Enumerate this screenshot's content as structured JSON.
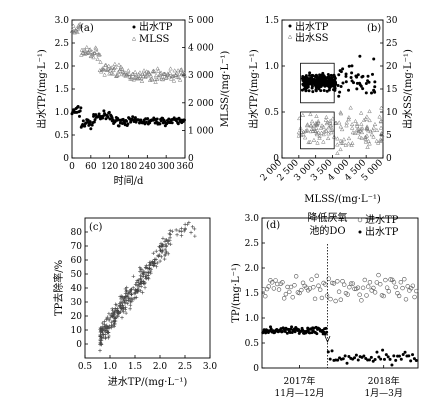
{
  "figure": {
    "panels": [
      {
        "id": "a",
        "label": "(a)"
      },
      {
        "id": "b",
        "label": "(b)"
      },
      {
        "id": "c",
        "label": "(c)"
      },
      {
        "id": "d",
        "label": "(d)"
      }
    ]
  },
  "chart_data": [
    {
      "panel": "(a)",
      "type": "scatter",
      "xlabel": "时间/d",
      "ylabel": "出水TP/(mg·L⁻¹)",
      "ylabel_right": "MLSS/(mg·L⁻¹)",
      "xlim": [
        0,
        365
      ],
      "ylim": [
        0,
        3.0
      ],
      "ylim_right": [
        0,
        5000
      ],
      "xticks": [
        "0",
        "60",
        "120",
        "180",
        "240",
        "300",
        "360"
      ],
      "yticks": [
        "0",
        "0.5",
        "1.0",
        "1.5",
        "2.0",
        "2.5",
        "3.0"
      ],
      "yticks_right": [
        "0",
        "1 000",
        "2 000",
        "3 000",
        "4 000",
        "5 000"
      ],
      "legend": [
        "出水TP",
        "MLSS"
      ],
      "legend_position": "top-right",
      "series": [
        {
          "name": "出水TP",
          "axis": "left",
          "marker": "filled-circle",
          "segments": [
            {
              "x_range": [
                0,
                30
              ],
              "level": 1.0,
              "spread": 0.2
            },
            {
              "x_range": [
                30,
                70
              ],
              "level": 0.75,
              "spread": 0.2
            },
            {
              "x_range": [
                70,
                130
              ],
              "level": 0.9,
              "spread": 0.15
            },
            {
              "x_range": [
                130,
                365
              ],
              "level": 0.8,
              "spread": 0.12
            }
          ]
        },
        {
          "name": "MLSS",
          "axis": "right",
          "marker": "open-triangle",
          "segments": [
            {
              "x_range": [
                0,
                30
              ],
              "level": 4700,
              "spread": 300
            },
            {
              "x_range": [
                30,
                90
              ],
              "level": 3800,
              "spread": 300
            },
            {
              "x_range": [
                90,
                160
              ],
              "level": 3200,
              "spread": 400
            },
            {
              "x_range": [
                160,
                365
              ],
              "level": 3000,
              "spread": 300
            }
          ]
        }
      ]
    },
    {
      "panel": "(b)",
      "type": "scatter",
      "xlabel": "MLSS/(mg·L⁻¹)",
      "ylabel": "出水TP/(mg·L⁻¹)",
      "ylabel_right": "出水SS/(mg·L⁻¹)",
      "xlim": [
        2000,
        5000
      ],
      "ylim": [
        0,
        1.5
      ],
      "ylim_right": [
        0,
        30
      ],
      "xticks": [
        "2 000",
        "2 500",
        "3 000",
        "3 500",
        "4 000",
        "4 500",
        "5 000"
      ],
      "yticks": [
        "0",
        "0.5",
        "1.0",
        "1.5"
      ],
      "yticks_right": [
        "0",
        "5",
        "10",
        "15",
        "20",
        "25",
        "30"
      ],
      "legend": [
        "出水TP",
        "出水SS"
      ],
      "legend_position": "top-left",
      "series": [
        {
          "name": "出水TP",
          "axis": "left",
          "marker": "filled-circle",
          "cluster": {
            "x_range": [
              2500,
              4000
            ],
            "level": 0.85,
            "spread": 0.2
          }
        },
        {
          "name": "出水SS",
          "axis": "right",
          "marker": "open-triangle",
          "cluster": {
            "x_range": [
              2500,
              5000
            ],
            "level": 6,
            "spread": 4
          }
        }
      ],
      "boxes": [
        {
          "series": "出水TP",
          "x_range": [
            2550,
            3550
          ],
          "y_range": [
            0.6,
            1.03
          ]
        },
        {
          "series": "出水SS",
          "x_range": [
            2550,
            3550
          ],
          "y_range_right": [
            2,
            10
          ]
        }
      ]
    },
    {
      "panel": "(c)",
      "type": "scatter",
      "xlabel": "进水TP/(mg·L⁻¹)",
      "ylabel": "TP去除率/%",
      "xlim": [
        0.5,
        3.0
      ],
      "ylim": [
        -10,
        90
      ],
      "xticks": [
        "0.5",
        "1.0",
        "1.5",
        "2.0",
        "2.5",
        "3.0"
      ],
      "yticks": [
        "0",
        "10",
        "20",
        "30",
        "40",
        "50",
        "60",
        "70",
        "80"
      ],
      "series": [
        {
          "name": "",
          "marker": "plus",
          "trend": {
            "x_range": [
              0.8,
              2.7
            ],
            "y_at_start": 5,
            "y_at_end": 80,
            "spread": 12
          }
        }
      ]
    },
    {
      "panel": "(d)",
      "type": "scatter",
      "ylabel": "TP/(mg·L⁻¹)",
      "ylim": [
        0,
        3.0
      ],
      "yticks": [
        "0",
        "0.5",
        "1.0",
        "1.5",
        "2.0",
        "2.5",
        "3.0"
      ],
      "xtick_labels": [
        [
          "2017年",
          "11月—12月"
        ],
        [
          "2018年",
          "1月—3月"
        ]
      ],
      "legend": [
        "进水TP",
        "出水TP"
      ],
      "legend_position": "top-right",
      "annotation": {
        "text": [
          "降低厌氧",
          "池的DO"
        ],
        "at_fraction_of_x": 0.42
      },
      "series": [
        {
          "name": "进水TP",
          "marker": "open-circle",
          "segments": [
            {
              "x_range": [
                0,
                1
              ],
              "level": 1.6,
              "spread": 0.35
            }
          ]
        },
        {
          "name": "出水TP",
          "marker": "filled-circle",
          "segments": [
            {
              "x_range": [
                0,
                0.42
              ],
              "level": 0.75,
              "spread": 0.1
            },
            {
              "x_range": [
                0.42,
                1
              ],
              "level": 0.2,
              "spread": 0.2
            }
          ]
        }
      ]
    }
  ]
}
